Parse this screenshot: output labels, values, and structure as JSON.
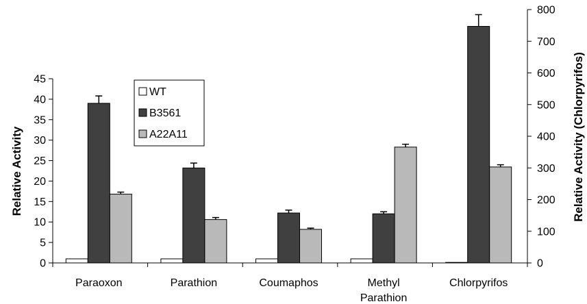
{
  "chart_data": {
    "type": "bar",
    "categories": [
      "Paraoxon",
      "Parathion",
      "Coumaphos",
      "Methyl Parathion",
      "Chlorpyrifos"
    ],
    "category_labels": [
      [
        "Paraoxon"
      ],
      [
        "Parathion"
      ],
      [
        "Coumaphos"
      ],
      [
        "Methyl",
        "Parathion"
      ],
      [
        "Chlorpyrifos"
      ]
    ],
    "series": [
      {
        "name": "WT",
        "color": "#ffffff",
        "values": [
          1,
          1,
          1,
          1,
          1
        ],
        "errors": [
          0,
          0,
          0,
          0,
          0
        ],
        "axis": [
          "left",
          "left",
          "left",
          "left",
          "right"
        ]
      },
      {
        "name": "B3561",
        "color": "#404040",
        "values": [
          39,
          23.2,
          12.2,
          12,
          747
        ],
        "errors": [
          1.8,
          1.2,
          0.7,
          0.5,
          37
        ],
        "axis": [
          "left",
          "left",
          "left",
          "left",
          "right"
        ]
      },
      {
        "name": "A22A11",
        "color": "#b9b9b9",
        "values": [
          16.8,
          10.6,
          8.2,
          28.3,
          303
        ],
        "errors": [
          0.5,
          0.5,
          0.3,
          0.7,
          7
        ],
        "axis": [
          "left",
          "left",
          "left",
          "left",
          "right"
        ]
      }
    ],
    "ylabel": "Relative Activity",
    "ylabel_right": "Relative Activity (Chlorpyrifos)",
    "ylim": [
      0,
      45
    ],
    "ylim_right": [
      0,
      800
    ],
    "yticks": [
      0,
      5,
      10,
      15,
      20,
      25,
      30,
      35,
      40,
      45
    ],
    "yticks_right": [
      0,
      100,
      200,
      300,
      400,
      500,
      600,
      700,
      800
    ],
    "grid": false,
    "legend_position": "upper-left"
  }
}
